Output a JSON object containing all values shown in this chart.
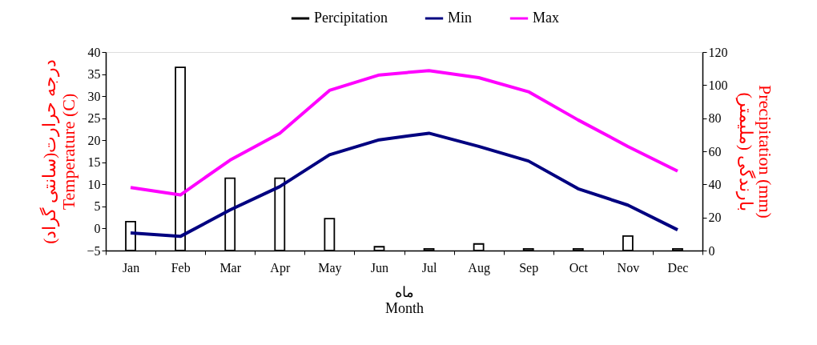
{
  "chart_data": {
    "type": "line",
    "categories": [
      "Jan",
      "Feb",
      "Mar",
      "Apr",
      "May",
      "Jun",
      "Jul",
      "Aug",
      "Sep",
      "Oct",
      "Nov",
      "Dec"
    ],
    "xlabel": "ماه\nMonth",
    "ylabel": "درجه حرارت(سانتی گراد)\nTemperature (C)",
    "y2label": "Precipitation (mm)\nبارندگی (ملیمتر)",
    "series": [
      {
        "name": "Percipitation",
        "type": "bar",
        "axis": "y2",
        "color": "#000000",
        "values": [
          17.5,
          110.7,
          43.7,
          43.7,
          19.3,
          2.3,
          1,
          4,
          1,
          1,
          8.8,
          1
        ]
      },
      {
        "name": "Min",
        "color": "#000080",
        "values": [
          -1,
          -1.8,
          4.2,
          9.5,
          16.7,
          20.1,
          21.6,
          18.6,
          15.3,
          9.0,
          5.3,
          -0.3
        ]
      },
      {
        "name": "Max",
        "color": "#ff00ff",
        "values": [
          9.3,
          7.6,
          15.5,
          21.6,
          31.3,
          34.8,
          35.8,
          34.2,
          31.0,
          24.6,
          18.6,
          13.0
        ]
      }
    ],
    "ylim": [
      -5,
      40
    ],
    "yticks": [
      -5,
      0,
      5,
      10,
      15,
      20,
      25,
      30,
      35,
      40
    ],
    "y2lim": [
      0,
      120
    ],
    "y2ticks": [
      0,
      20,
      40,
      60,
      80,
      100,
      120
    ],
    "grid": false,
    "legend": "top",
    "marker": "none"
  }
}
